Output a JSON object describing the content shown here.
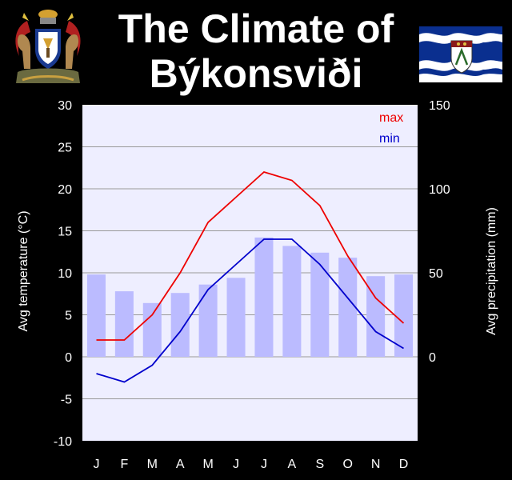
{
  "header": {
    "title_line1": "The Climate of",
    "title_line2": "Býkonsviði"
  },
  "colors": {
    "background": "#000000",
    "plot_bg": "#eeeeff",
    "gridline": "#999999",
    "precip_bar": "#bbbbff",
    "max_line": "#ee0000",
    "min_line": "#0000cc",
    "flag_blue": "#0a2f8f",
    "flag_white": "#ffffff"
  },
  "emblems": {
    "left": "coat-of-arms-icon",
    "right": "wavy-flag-icon"
  },
  "chart_data": {
    "type": "line",
    "categories": [
      "J",
      "F",
      "M",
      "A",
      "M",
      "J",
      "J",
      "A",
      "S",
      "O",
      "N",
      "D"
    ],
    "ylabel": "Avg temperature (°C)",
    "y2label": "Avg precipitation (mm)",
    "ylim": [
      -10,
      30
    ],
    "y_ticks": [
      -10,
      -5,
      0,
      5,
      10,
      15,
      20,
      25,
      30
    ],
    "y2lim": [
      -50,
      150
    ],
    "y2_ticks": [
      0,
      50,
      100,
      150
    ],
    "grid": true,
    "legend_position": "top-right",
    "series": [
      {
        "name": "max",
        "axis": "temperature",
        "type": "line",
        "color": "#ee0000",
        "values": [
          2,
          2,
          5,
          10,
          16,
          19,
          22,
          21,
          18,
          12,
          7,
          4
        ]
      },
      {
        "name": "min",
        "axis": "temperature",
        "type": "line",
        "color": "#0000cc",
        "values": [
          -2,
          -3,
          -1,
          3,
          8,
          11,
          14,
          14,
          11,
          7,
          3,
          1
        ]
      },
      {
        "axis": "precipitation",
        "type": "bar",
        "color": "#bbbbff",
        "values": [
          49,
          39,
          32,
          38,
          43,
          47,
          71,
          66,
          62,
          59,
          48,
          49
        ]
      }
    ]
  }
}
